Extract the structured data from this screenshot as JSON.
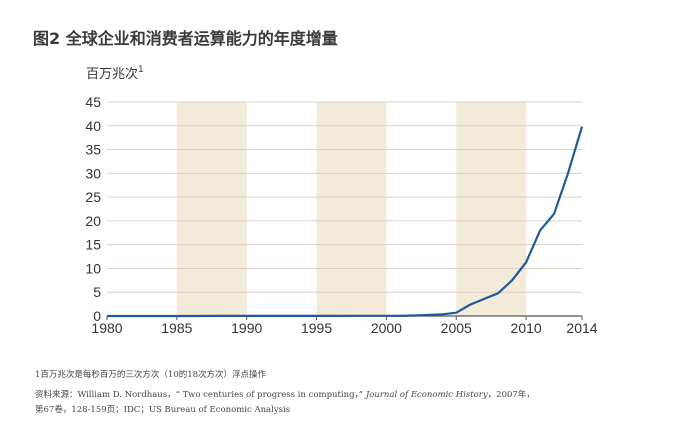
{
  "figure": {
    "title": "图2  全球企业和消费者运算能力的年度增量"
  },
  "chart_data": {
    "type": "line",
    "title": "图2  全球企业和消费者运算能力的年度增量",
    "ylabel": "百万兆次",
    "ylabel_superscript": "1",
    "xlabel": "",
    "xlim": [
      1980,
      2014
    ],
    "ylim": [
      0,
      45
    ],
    "x_ticks": [
      "1980",
      "1985",
      "1990",
      "1995",
      "2000",
      "2005",
      "2010",
      "2014"
    ],
    "y_ticks": [
      "0",
      "5",
      "10",
      "15",
      "20",
      "25",
      "30",
      "35",
      "40",
      "45"
    ],
    "grid": true,
    "background_bands": true,
    "series": [
      {
        "color": "#1f5a96",
        "points": [
          [
            1980,
            0.01
          ],
          [
            1982,
            0.01
          ],
          [
            1984,
            0.01
          ],
          [
            1986,
            0.01
          ],
          [
            1988,
            0.02
          ],
          [
            1990,
            0.03
          ],
          [
            1992,
            0.03
          ],
          [
            1994,
            0.03
          ],
          [
            1996,
            0.03
          ],
          [
            1998,
            0.04
          ],
          [
            2000,
            0.05
          ],
          [
            2001,
            0.02
          ],
          [
            2002,
            0.1
          ],
          [
            2003,
            0.2
          ],
          [
            2004,
            0.35
          ],
          [
            2005,
            0.7
          ],
          [
            2006,
            2.4
          ],
          [
            2007,
            3.6
          ],
          [
            2008,
            4.8
          ],
          [
            2009,
            7.5
          ],
          [
            2010,
            11.3
          ],
          [
            2011,
            18.0
          ],
          [
            2012,
            21.5
          ],
          [
            2013,
            30.0
          ],
          [
            2014,
            39.8
          ]
        ]
      }
    ]
  },
  "notes": {
    "footnote": "1百万兆次是每秒百万的三次方次（10的18次方次）浮点操作",
    "source_prefix": "资料来源：William D. Nordhaus，“ Two centuries of progress in computing，” ",
    "source_journal": "Journal of Economic History",
    "source_suffix": "，2007年，",
    "source_line2": "第67卷，128-159页；IDC；US Bureau of Economic Analysis"
  },
  "colors": {
    "line": "#1f5a96",
    "band": "#f3ead9",
    "grid": "#d9d2c6",
    "axis": "#555555"
  }
}
